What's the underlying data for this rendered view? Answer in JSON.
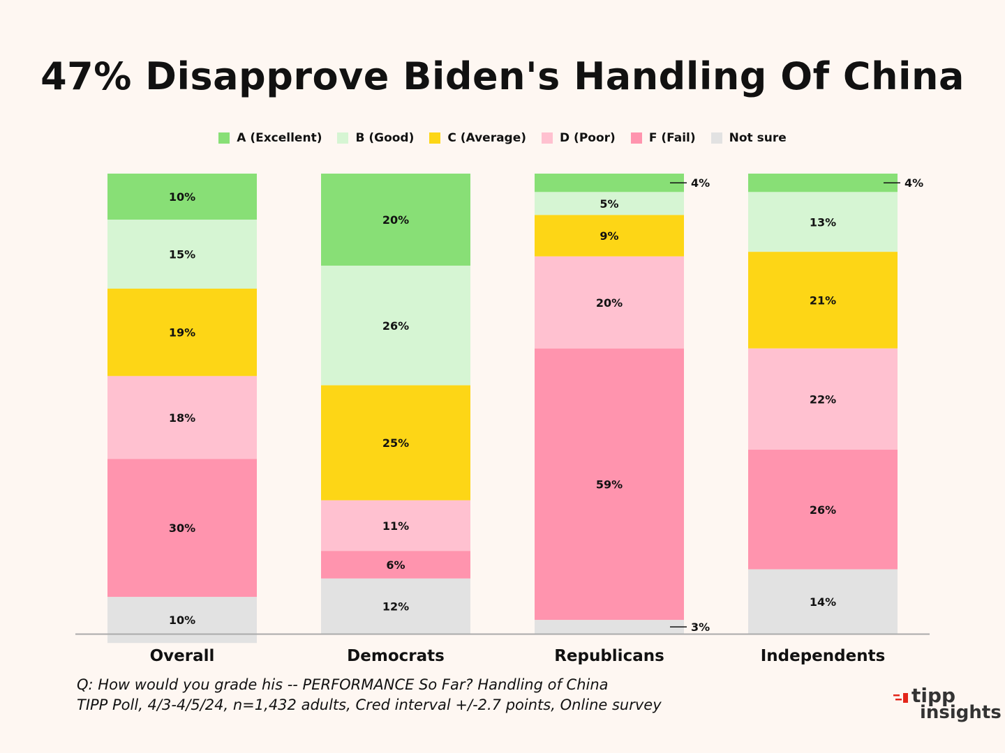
{
  "chart_data": {
    "type": "bar",
    "stacked": true,
    "title": "47% Disapprove Biden's Handling Of China",
    "categories": [
      "Overall",
      "Democrats",
      "Republicans",
      "Independents"
    ],
    "ylim": [
      0,
      100
    ],
    "grid": false,
    "legend_placement": "top-center",
    "series": [
      {
        "name": "A (Excellent)",
        "color": "#88df76",
        "values": [
          10,
          20,
          4,
          4
        ],
        "labels": [
          "10%",
          "20%",
          "4%",
          "4%"
        ]
      },
      {
        "name": "B (Good)",
        "color": "#d6f5d3",
        "values": [
          15,
          26,
          5,
          13
        ],
        "labels": [
          "15%",
          "26%",
          "5%",
          "13%"
        ]
      },
      {
        "name": "C (Average)",
        "color": "#fdd616",
        "values": [
          19,
          25,
          9,
          21
        ],
        "labels": [
          "19%",
          "25%",
          "9%",
          "21%"
        ]
      },
      {
        "name": "D (Poor)",
        "color": "#ffc1d0",
        "values": [
          18,
          11,
          20,
          22
        ],
        "labels": [
          "18%",
          "11%",
          "20%",
          "22%"
        ]
      },
      {
        "name": "F (Fail)",
        "color": "#ff94ae",
        "values": [
          30,
          6,
          59,
          26
        ],
        "labels": [
          "30%",
          "6%",
          "59%",
          "26%"
        ]
      },
      {
        "name": "Not sure",
        "color": "#e2e2e2",
        "values": [
          10,
          12,
          3,
          14
        ],
        "labels": [
          "10%",
          "12%",
          "3%",
          "14%"
        ]
      }
    ],
    "callouts": [
      {
        "category": 2,
        "series": 0,
        "text": "4%"
      },
      {
        "category": 2,
        "series": 5,
        "text": "3%"
      },
      {
        "category": 3,
        "series": 0,
        "text": "4%"
      }
    ]
  },
  "footnote": {
    "line1": "Q:  How would you grade his -- PERFORMANCE So Far?  Handling of China",
    "line2": "TIPP Poll, 4/3-4/5/24, n=1,432 adults, Cred interval +/-2.7 points, Online survey"
  },
  "logo": {
    "line1": "tipp",
    "line2": "insights",
    "accent": "#e3261b"
  }
}
